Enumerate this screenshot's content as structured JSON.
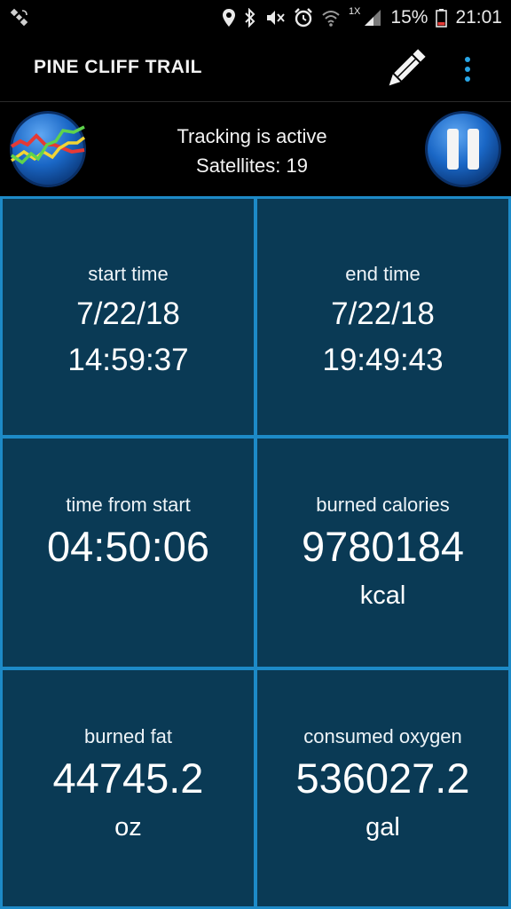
{
  "status_bar": {
    "network_type": "1X",
    "battery_percent": "15%",
    "time": "21:01"
  },
  "app_bar": {
    "title": "PINE CLIFF TRAIL"
  },
  "tracking": {
    "status": "Tracking is active",
    "satellites": "Satellites: 19"
  },
  "stats": {
    "start_time": {
      "label": "start time",
      "date": "7/22/18",
      "time": "14:59:37"
    },
    "end_time": {
      "label": "end time",
      "date": "7/22/18",
      "time": "19:49:43"
    },
    "time_from_start": {
      "label": "time from start",
      "value": "04:50:06"
    },
    "burned_calories": {
      "label": "burned calories",
      "value": "9780184",
      "unit": "kcal"
    },
    "burned_fat": {
      "label": "burned fat",
      "value": "44745.2",
      "unit": "oz"
    },
    "consumed_oxygen": {
      "label": "consumed oxygen",
      "value": "536027.2",
      "unit": "gal"
    }
  },
  "colors": {
    "grid_border": "#1d8ac7",
    "cell_background": "#0a3a55",
    "button_blue": "#1a67c6"
  }
}
